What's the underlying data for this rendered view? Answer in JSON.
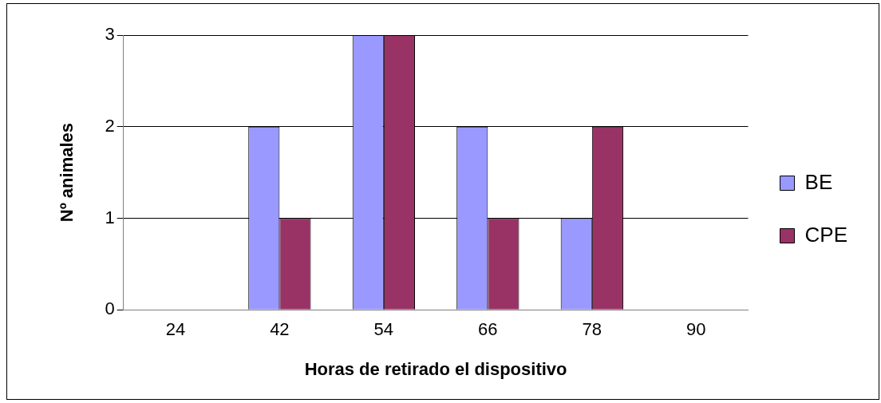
{
  "chart_data": {
    "type": "bar",
    "xlabel": "Horas de retirado el dispositivo",
    "ylabel": "Nº animales",
    "categories": [
      "24",
      "42",
      "54",
      "66",
      "78",
      "90"
    ],
    "series": [
      {
        "name": "BE",
        "color": "#9999ff",
        "values": [
          0,
          2,
          3,
          2,
          1,
          0
        ]
      },
      {
        "name": "CPE",
        "color": "#993366",
        "values": [
          0,
          1,
          3,
          1,
          2,
          0
        ]
      }
    ],
    "ylim": [
      0,
      3
    ],
    "yticks": [
      0,
      1,
      2,
      3
    ],
    "grid": "y",
    "legend": "right"
  }
}
